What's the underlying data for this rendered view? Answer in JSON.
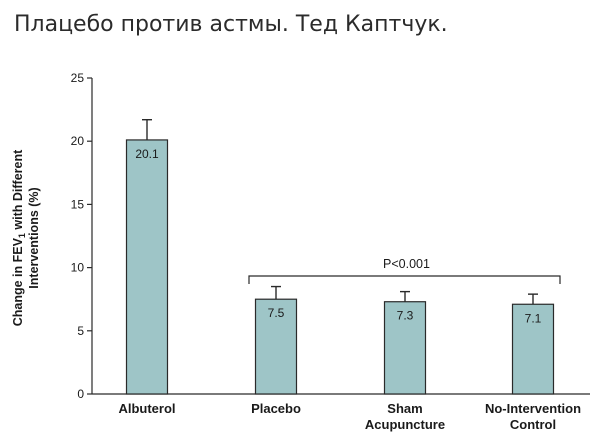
{
  "page": {
    "title": "Плацебо против астмы. Тед Каптчук."
  },
  "chart_data": {
    "type": "bar",
    "categories": [
      [
        "Albuterol"
      ],
      [
        "Placebo"
      ],
      [
        "Sham",
        "Acupuncture"
      ],
      [
        "No-Intervention",
        "Control"
      ]
    ],
    "values": [
      20.1,
      7.5,
      7.3,
      7.1
    ],
    "value_labels": [
      "20.1",
      "7.5",
      "7.3",
      "7.1"
    ],
    "error_upper": [
      21.7,
      8.5,
      8.1,
      7.9
    ],
    "ylabel_lines": [
      "Change in FEV",
      "1",
      " with Different",
      "Interventions (%)"
    ],
    "ylim": [
      0,
      25
    ],
    "yticks": [
      0,
      5,
      10,
      15,
      20,
      25
    ],
    "annotation": {
      "text": "P<0.001",
      "spans_categories": [
        1,
        3
      ]
    },
    "colors": {
      "bar_fill": "#9ec5c7",
      "bar_stroke": "#2a2a2a",
      "axis": "#2a2a2a"
    },
    "grid": false,
    "legend": "none"
  }
}
